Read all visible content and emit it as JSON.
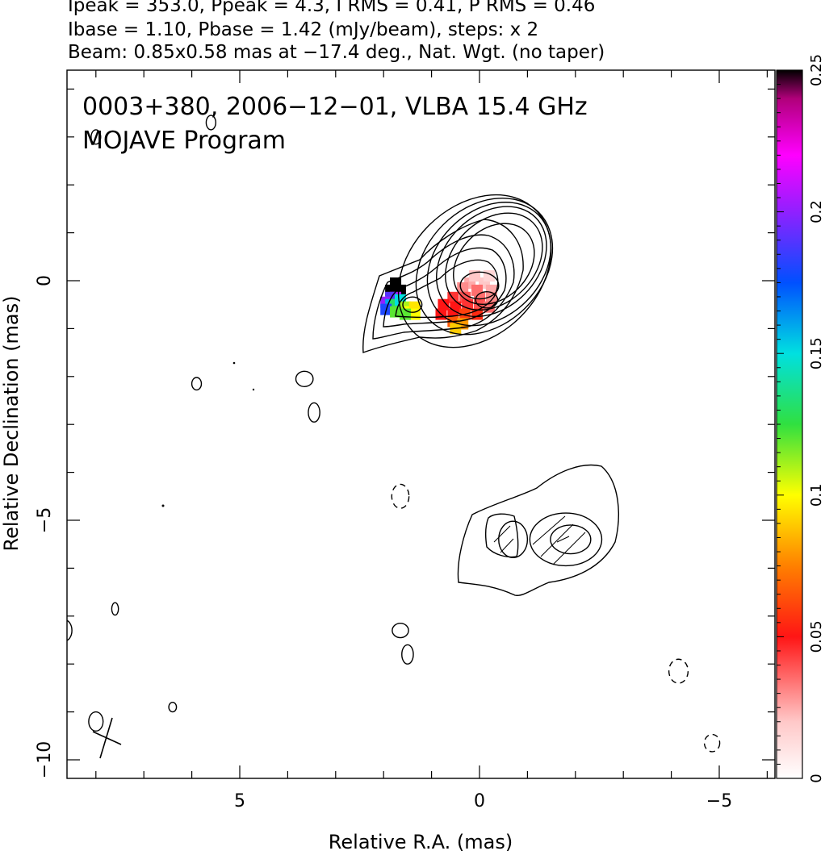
{
  "header": {
    "line1": "Ipeak = 353.0, Ppeak = 4.3, I RMS = 0.41, P RMS = 0.46",
    "line2": "Ibase = 1.10, Pbase = 1.42 (mJy/beam), steps: x 2",
    "line3": "Beam: 0.85x0.58 mas at −17.4 deg., Nat. Wgt. (no taper)"
  },
  "plot": {
    "title_line1": "0003+380, 2006−12−01, VLBA 15.4 GHz",
    "title_line2": "MOJAVE Program"
  },
  "chart_data": {
    "type": "heatmap",
    "xlabel": "Relative R.A. (mas)",
    "ylabel": "Relative Declination (mas)",
    "xlim": [
      8.8,
      -6.1
    ],
    "ylim": [
      -10.4,
      4.4
    ],
    "x_ticks": [
      5,
      0,
      -5
    ],
    "x_tick_labels": [
      "5",
      "0",
      "−5"
    ],
    "y_ticks": [
      0,
      -5,
      -10
    ],
    "y_tick_labels": [
      "0",
      "−5",
      "−10"
    ],
    "colorbar": {
      "range": [
        0,
        0.25
      ],
      "ticks": [
        0,
        0.05,
        0.1,
        0.15,
        0.2,
        0.25
      ],
      "tick_labels": [
        "0",
        "0.05",
        "0.1",
        "0.15",
        "0.2",
        "0.25"
      ]
    },
    "beam": {
      "major_mas": 0.85,
      "minor_mas": 0.58,
      "pa_deg": -17.4
    },
    "core_contours": [
      {
        "x": 0.0,
        "y": -0.1,
        "a": 0.4,
        "b": 0.28,
        "angle": 0
      },
      {
        "x": -0.15,
        "y": -0.4,
        "a": 0.23,
        "b": 0.17,
        "angle": 0
      },
      {
        "x": 1.4,
        "y": -0.5,
        "a": 0.2,
        "b": 0.16,
        "angle": 0
      },
      {
        "x": -0.3,
        "y": 0.35,
        "a": 0.95,
        "b": 0.72,
        "angle": -45
      },
      {
        "x": -0.3,
        "y": 0.4,
        "a": 1.15,
        "b": 0.85,
        "angle": -45
      },
      {
        "x": -0.25,
        "y": 0.4,
        "a": 1.3,
        "b": 0.97,
        "angle": -45
      },
      {
        "x": -0.2,
        "y": 0.35,
        "a": 1.45,
        "b": 1.1,
        "angle": -45
      },
      {
        "x": -0.1,
        "y": 0.3,
        "a": 1.6,
        "b": 1.22,
        "angle": -45
      },
      {
        "x": 0.1,
        "y": 0.2,
        "a": 1.8,
        "b": 1.35,
        "angle": -45
      }
    ],
    "jet_contours": [
      {
        "x": -1.9,
        "y": -5.4,
        "a": 0.42,
        "b": 0.3,
        "angle": 0
      },
      {
        "x": -1.8,
        "y": -5.4,
        "a": 0.75,
        "b": 0.55,
        "angle": 0
      },
      {
        "x": -0.7,
        "y": -5.4,
        "a": 0.3,
        "b": 0.38,
        "angle": 0
      }
    ],
    "small_contours": [
      {
        "x": 8.0,
        "y": 3.0,
        "a": 0.1,
        "b": 0.15
      },
      {
        "x": 5.6,
        "y": 3.3,
        "a": 0.1,
        "b": 0.15
      },
      {
        "x": 5.9,
        "y": -2.15,
        "a": 0.1,
        "b": 0.13
      },
      {
        "x": 3.65,
        "y": -2.05,
        "a": 0.18,
        "b": 0.16
      },
      {
        "x": 3.45,
        "y": -2.75,
        "a": 0.12,
        "b": 0.2
      },
      {
        "x": 7.6,
        "y": -6.85,
        "a": 0.07,
        "b": 0.13
      },
      {
        "x": 1.65,
        "y": -7.3,
        "a": 0.17,
        "b": 0.15
      },
      {
        "x": 1.5,
        "y": -7.8,
        "a": 0.12,
        "b": 0.2
      },
      {
        "x": 8.0,
        "y": -9.2,
        "a": 0.15,
        "b": 0.2
      },
      {
        "x": 6.4,
        "y": -8.9,
        "a": 0.08,
        "b": 0.1
      },
      {
        "x": 8.65,
        "y": -7.3,
        "a": 0.15,
        "b": 0.22
      },
      {
        "x": 8.75,
        "y": -8.8,
        "a": 0.08,
        "b": 0.16
      }
    ],
    "neg_contours": [
      {
        "x": 1.65,
        "y": -4.5,
        "a": 0.18,
        "b": 0.25
      },
      {
        "x": -4.15,
        "y": -8.15,
        "a": 0.2,
        "b": 0.25
      },
      {
        "x": -4.85,
        "y": -9.65,
        "a": 0.16,
        "b": 0.18
      }
    ],
    "fractional_polarization": [
      {
        "x": 1.75,
        "y": -0.05,
        "v": 0.25
      },
      {
        "x": 1.85,
        "y": -0.2,
        "v": 0.25
      },
      {
        "x": 1.65,
        "y": -0.2,
        "v": 0.25
      },
      {
        "x": 1.75,
        "y": -0.35,
        "v": 0.21
      },
      {
        "x": 1.85,
        "y": -0.35,
        "v": 0.19
      },
      {
        "x": 1.95,
        "y": -0.45,
        "v": 0.2
      },
      {
        "x": 1.85,
        "y": -0.5,
        "v": 0.16
      },
      {
        "x": 1.75,
        "y": -0.5,
        "v": 0.13
      },
      {
        "x": 1.65,
        "y": -0.4,
        "v": 0.15
      },
      {
        "x": 1.95,
        "y": -0.6,
        "v": 0.18
      },
      {
        "x": 1.75,
        "y": -0.65,
        "v": 0.12
      },
      {
        "x": 1.55,
        "y": -0.55,
        "v": 0.11
      },
      {
        "x": 1.45,
        "y": -0.65,
        "v": 0.1
      },
      {
        "x": 1.35,
        "y": -0.55,
        "v": 0.095
      },
      {
        "x": 1.35,
        "y": -0.7,
        "v": 0.1
      },
      {
        "x": 1.55,
        "y": -0.7,
        "v": 0.12
      },
      {
        "x": 0.2,
        "y": -0.05,
        "v": 0.025
      },
      {
        "x": -0.1,
        "y": -0.05,
        "v": 0.02
      },
      {
        "x": -0.2,
        "y": 0.1,
        "v": 0.015
      },
      {
        "x": 0.1,
        "y": 0.1,
        "v": 0.02
      },
      {
        "x": 0.35,
        "y": -0.15,
        "v": 0.03
      },
      {
        "x": 0.05,
        "y": -0.2,
        "v": 0.035
      },
      {
        "x": -0.25,
        "y": -0.2,
        "v": 0.025
      },
      {
        "x": 0.55,
        "y": -0.35,
        "v": 0.045
      },
      {
        "x": 0.3,
        "y": -0.35,
        "v": 0.04
      },
      {
        "x": 0.0,
        "y": -0.35,
        "v": 0.035
      },
      {
        "x": -0.25,
        "y": -0.35,
        "v": 0.03
      },
      {
        "x": 0.75,
        "y": -0.5,
        "v": 0.05
      },
      {
        "x": 0.5,
        "y": -0.55,
        "v": 0.05
      },
      {
        "x": 0.25,
        "y": -0.5,
        "v": 0.045
      },
      {
        "x": 0.0,
        "y": -0.5,
        "v": 0.04
      },
      {
        "x": -0.2,
        "y": -0.55,
        "v": 0.035
      },
      {
        "x": 0.8,
        "y": -0.7,
        "v": 0.05
      },
      {
        "x": 0.55,
        "y": -0.7,
        "v": 0.05
      },
      {
        "x": 0.3,
        "y": -0.7,
        "v": 0.06
      },
      {
        "x": 0.05,
        "y": -0.7,
        "v": 0.055
      },
      {
        "x": 0.55,
        "y": -0.85,
        "v": 0.065
      },
      {
        "x": 0.35,
        "y": -0.9,
        "v": 0.08
      },
      {
        "x": 0.5,
        "y": -1.0,
        "v": 0.09
      }
    ]
  }
}
